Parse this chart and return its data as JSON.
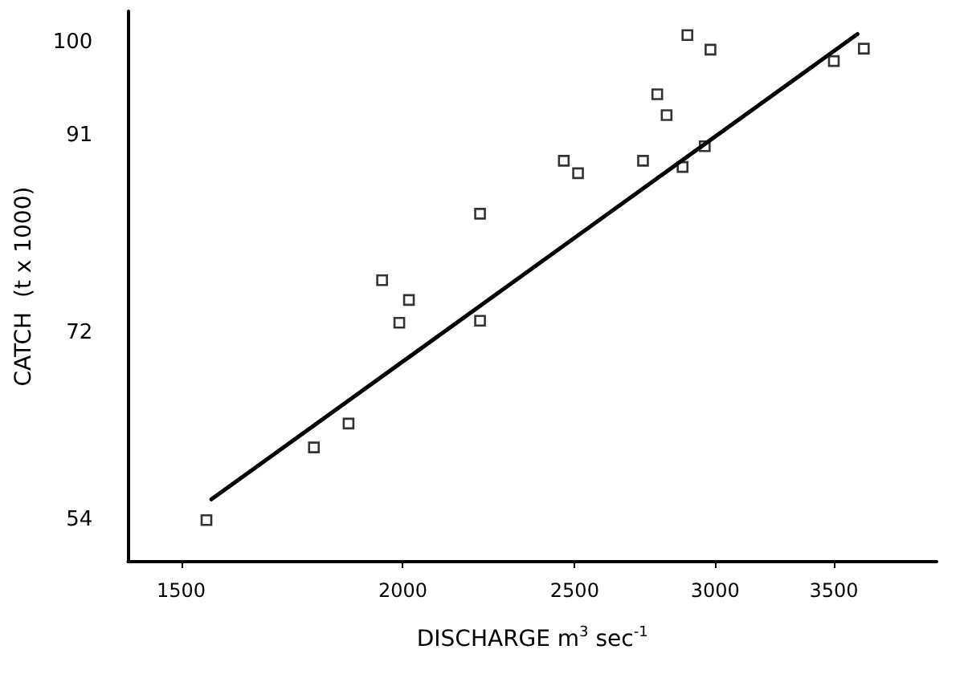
{
  "chart_data": {
    "type": "scatter",
    "xlabel": "DISCHARGE m$^{3}$ sec$^{-1}$",
    "ylabel": "CATCH  (t x 1000)",
    "log": "x",
    "xlim": [
      1400,
      4000
    ],
    "xticks": [
      1500,
      2000,
      2500,
      3000,
      3500
    ],
    "ylim": [
      50,
      103
    ],
    "yticks": [
      54,
      72,
      91,
      100
    ],
    "grid": false,
    "marker": "square",
    "series": [
      {
        "color": "#000000",
        "x": [
          1550,
          1782,
          1864,
          1947,
          1991,
          2016,
          2211,
          2211,
          2465,
          2511,
          2732,
          2783,
          2817,
          2876,
          2894,
          2960,
          2982,
          3500,
          3639
        ],
        "values": [
          54,
          61,
          63.3,
          77.1,
          73,
          75.2,
          83.5,
          73.2,
          88.6,
          87.4,
          88.6,
          95,
          93,
          88,
          100.7,
          90,
          99.3,
          98.2,
          99.4
        ]
      },
      {
        "type": "line",
        "color": "#000000",
        "marker": "none",
        "line_style": "solid",
        "x": [
          1560,
          3609
        ],
        "values": [
          56,
          100.8
        ]
      }
    ]
  }
}
